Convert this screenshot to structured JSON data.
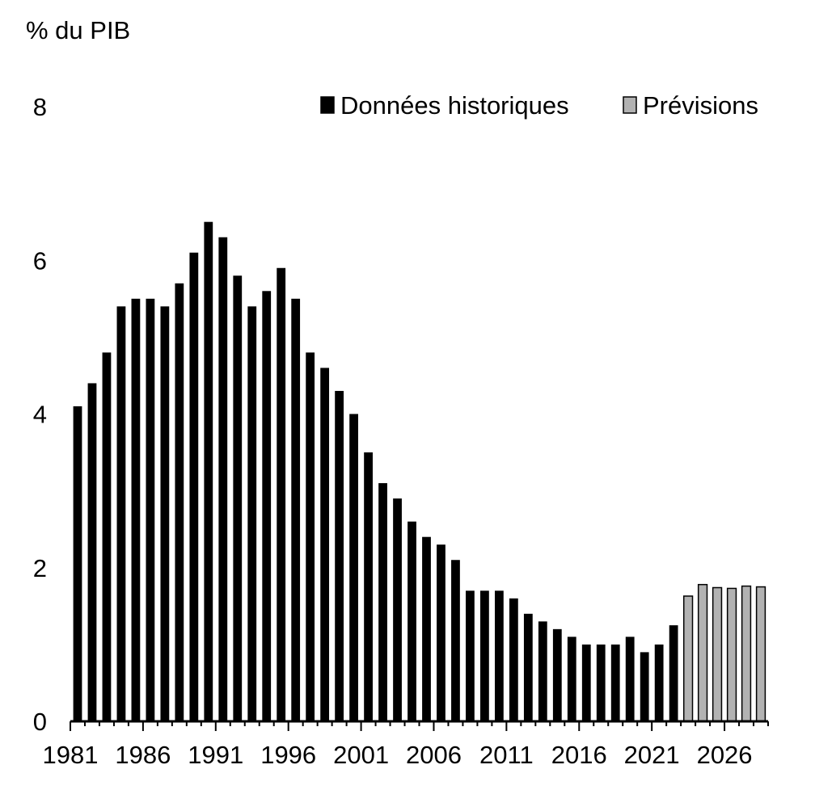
{
  "chart_data": {
    "type": "bar",
    "ylabel": "% du PIB",
    "ylim": [
      0,
      8
    ],
    "yticks": [
      0,
      2,
      4,
      6,
      8
    ],
    "xtick_labels": [
      "1981",
      "1986",
      "1991",
      "1996",
      "2001",
      "2006",
      "2011",
      "2016",
      "2021",
      "2026"
    ],
    "legend": {
      "position": "top-right"
    },
    "grid": false,
    "categories": [
      "1981",
      "1982",
      "1983",
      "1984",
      "1985",
      "1986",
      "1987",
      "1988",
      "1989",
      "1990",
      "1991",
      "1992",
      "1993",
      "1994",
      "1995",
      "1996",
      "1997",
      "1998",
      "1999",
      "2000",
      "2001",
      "2002",
      "2003",
      "2004",
      "2005",
      "2006",
      "2007",
      "2008",
      "2009",
      "2010",
      "2011",
      "2012",
      "2013",
      "2014",
      "2015",
      "2016",
      "2017",
      "2018",
      "2019",
      "2020",
      "2021",
      "2022",
      "2023",
      "2024",
      "2025",
      "2026",
      "2027",
      "2028"
    ],
    "series": [
      {
        "name": "Données historiques",
        "color": "#000000",
        "values": [
          4.1,
          4.4,
          4.8,
          5.4,
          5.5,
          5.5,
          5.4,
          5.7,
          6.1,
          6.5,
          6.3,
          5.8,
          5.4,
          5.6,
          5.9,
          5.5,
          4.8,
          4.6,
          4.3,
          4.0,
          3.5,
          3.1,
          2.9,
          2.6,
          2.4,
          2.3,
          2.1,
          1.7,
          1.7,
          1.7,
          1.6,
          1.4,
          1.3,
          1.2,
          1.1,
          1.0,
          1.0,
          1.0,
          1.1,
          0.9,
          1.0,
          1.25,
          null,
          null,
          null,
          null,
          null,
          null
        ]
      },
      {
        "name": "Prévisions",
        "color": "#b2b2b2",
        "values": [
          null,
          null,
          null,
          null,
          null,
          null,
          null,
          null,
          null,
          null,
          null,
          null,
          null,
          null,
          null,
          null,
          null,
          null,
          null,
          null,
          null,
          null,
          null,
          null,
          null,
          null,
          null,
          null,
          null,
          null,
          null,
          null,
          null,
          null,
          null,
          null,
          null,
          null,
          null,
          null,
          null,
          null,
          1.63,
          1.78,
          1.74,
          1.73,
          1.76,
          1.75
        ]
      }
    ]
  }
}
